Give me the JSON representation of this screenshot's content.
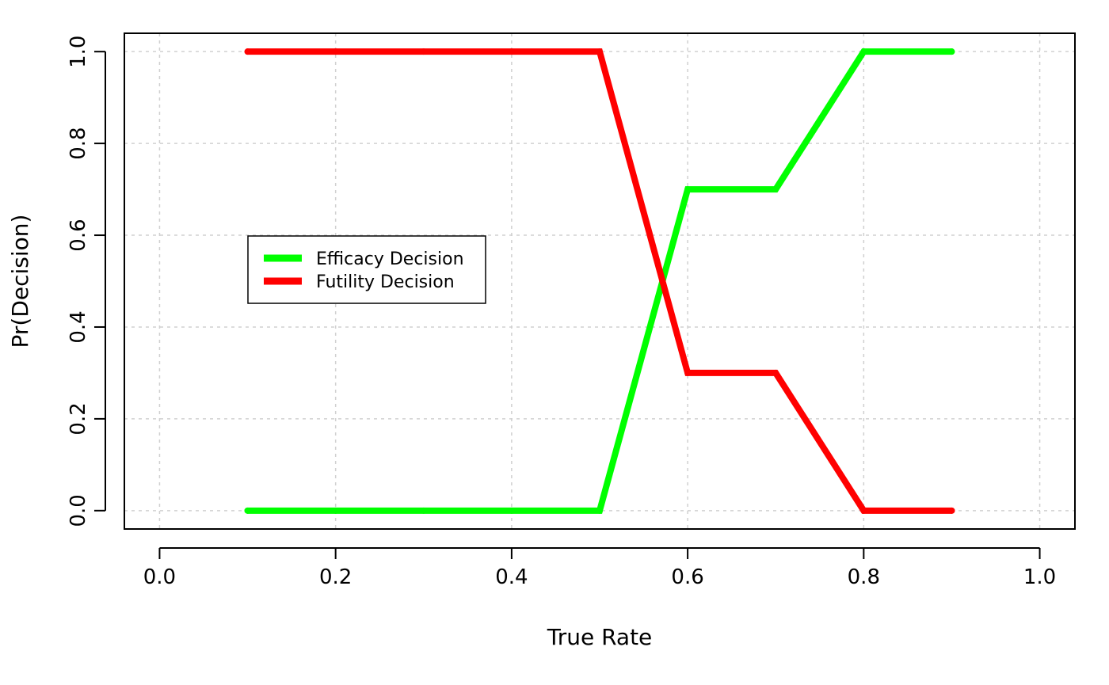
{
  "chart_data": {
    "type": "line",
    "title": "",
    "xlabel": "True Rate",
    "ylabel": "Pr(Decision)",
    "xlim": [
      -0.04,
      1.04
    ],
    "ylim": [
      -0.04,
      1.04
    ],
    "x_ticks": [
      "0.0",
      "0.2",
      "0.4",
      "0.6",
      "0.8",
      "1.0"
    ],
    "y_ticks": [
      "0.0",
      "0.2",
      "0.4",
      "0.6",
      "0.8",
      "1.0"
    ],
    "grid": true,
    "legend_position": "center-left",
    "x": [
      0.1,
      0.2,
      0.3,
      0.4,
      0.5,
      0.6,
      0.7,
      0.8,
      0.9
    ],
    "series": [
      {
        "name": "Efficacy Decision",
        "color": "#00ff00",
        "values": [
          0,
          0,
          0,
          0,
          0,
          0.7,
          0.7,
          1,
          1
        ]
      },
      {
        "name": "Futility Decision",
        "color": "#ff0000",
        "values": [
          1,
          1,
          1,
          1,
          1,
          0.3,
          0.3,
          0,
          0
        ]
      }
    ]
  }
}
